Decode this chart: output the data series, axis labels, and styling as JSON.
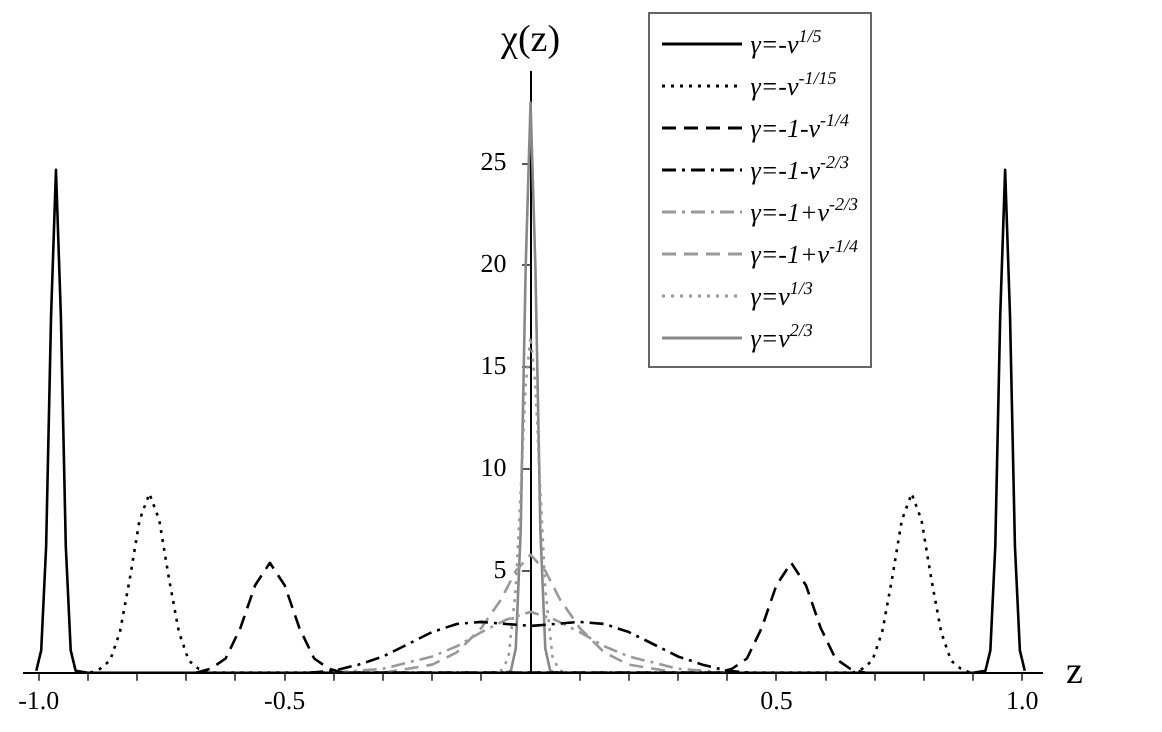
{
  "chart_data": {
    "type": "line",
    "xlabel": "z",
    "ylabel": "χ(z)",
    "xlim": [
      -1.03,
      1.04
    ],
    "ylim": [
      0,
      29.5
    ],
    "xticks": [
      {
        "value": -1,
        "label": "-1.0"
      },
      {
        "value": -0.9,
        "label": null
      },
      {
        "value": -0.8,
        "label": null
      },
      {
        "value": -0.7,
        "label": null
      },
      {
        "value": -0.6,
        "label": null
      },
      {
        "value": -0.5,
        "label": "-0.5"
      },
      {
        "value": -0.4,
        "label": null
      },
      {
        "value": -0.3,
        "label": null
      },
      {
        "value": -0.2,
        "label": null
      },
      {
        "value": -0.1,
        "label": null
      },
      {
        "value": 0.1,
        "label": null
      },
      {
        "value": 0.2,
        "label": null
      },
      {
        "value": 0.3,
        "label": null
      },
      {
        "value": 0.4,
        "label": null
      },
      {
        "value": 0.5,
        "label": "0.5"
      },
      {
        "value": 0.6,
        "label": null
      },
      {
        "value": 0.7,
        "label": null
      },
      {
        "value": 0.8,
        "label": null
      },
      {
        "value": 0.9,
        "label": null
      },
      {
        "value": 1,
        "label": "1.0"
      }
    ],
    "yticks": [
      {
        "value": 0,
        "label": null
      },
      5,
      10,
      15,
      20,
      25
    ],
    "grid": false,
    "legend": "top right",
    "marker": "none",
    "series": [
      {
        "name": "γ=-ν$^{1/5}$",
        "color": "#000000",
        "line_style": "solid",
        "x": [
          -1.005,
          -0.995,
          -0.985,
          -0.975,
          -0.965,
          -0.955,
          -0.945,
          -0.935,
          -0.925,
          -0.9,
          0.9,
          0.925,
          0.935,
          0.945,
          0.955,
          0.965,
          0.975,
          0.985,
          0.995,
          1.005
        ],
        "values": [
          0.1,
          1.1,
          6.2,
          17.5,
          24.7,
          17.5,
          6.2,
          1.1,
          0.1,
          0,
          0,
          0.1,
          1.1,
          6.2,
          17.5,
          24.7,
          17.5,
          6.2,
          1.1,
          0.1
        ]
      },
      {
        "name": "γ=-ν$^{-1/15}$",
        "color": "#000000",
        "line_style": "dotted",
        "x": [
          -0.895,
          -0.875,
          -0.855,
          -0.835,
          -0.815,
          -0.795,
          -0.775,
          -0.755,
          -0.735,
          -0.715,
          -0.695,
          -0.675,
          -0.655,
          0.655,
          0.675,
          0.695,
          0.715,
          0.735,
          0.755,
          0.775,
          0.795,
          0.815,
          0.835,
          0.855,
          0.875,
          0.895
        ],
        "values": [
          0,
          0.2,
          0.6,
          2.0,
          4.6,
          7.5,
          8.8,
          7.5,
          4.6,
          2.0,
          0.6,
          0.2,
          0,
          0,
          0.2,
          0.6,
          2.0,
          4.6,
          7.5,
          8.8,
          7.5,
          4.6,
          2.0,
          0.6,
          0.2,
          0
        ]
      },
      {
        "name": "γ=-1-ν$^{-1/4}$",
        "color": "#000000",
        "line_style": "dashed",
        "x": [
          -0.68,
          -0.65,
          -0.62,
          -0.59,
          -0.56,
          -0.53,
          -0.5,
          -0.47,
          -0.44,
          -0.41,
          -0.38,
          0.38,
          0.41,
          0.44,
          0.47,
          0.5,
          0.53,
          0.56,
          0.59,
          0.62,
          0.65,
          0.68
        ],
        "values": [
          0,
          0.2,
          0.7,
          2.2,
          4.3,
          5.4,
          4.3,
          2.2,
          0.7,
          0.2,
          0,
          0,
          0.2,
          0.7,
          2.2,
          4.3,
          5.4,
          4.3,
          2.2,
          0.7,
          0.2,
          0
        ]
      },
      {
        "name": "γ=-1-ν$^{-2/3}$",
        "color": "#000000",
        "line_style": "dashdot",
        "x": [
          -0.45,
          -0.4,
          -0.35,
          -0.3,
          -0.25,
          -0.2,
          -0.15,
          -0.1,
          -0.05,
          0,
          0.05,
          0.1,
          0.15,
          0.2,
          0.25,
          0.3,
          0.35,
          0.4,
          0.45
        ],
        "values": [
          0,
          0.1,
          0.4,
          0.8,
          1.4,
          2.0,
          2.4,
          2.5,
          2.4,
          2.3,
          2.4,
          2.5,
          2.4,
          2.0,
          1.4,
          0.8,
          0.4,
          0.1,
          0
        ]
      },
      {
        "name": "γ=-1+ν$^{-2/3}$",
        "color": "#999999",
        "line_style": "dashdot",
        "x": [
          -0.4,
          -0.3,
          -0.2,
          -0.15,
          -0.1,
          -0.05,
          0,
          0.05,
          0.1,
          0.15,
          0.2,
          0.3,
          0.4
        ],
        "values": [
          0,
          0.2,
          0.8,
          1.3,
          2.0,
          2.6,
          3.0,
          2.6,
          2.0,
          1.3,
          0.8,
          0.2,
          0
        ]
      },
      {
        "name": "γ=-1+ν$^{-1/4}$",
        "color": "#999999",
        "line_style": "dashed",
        "x": [
          -0.3,
          -0.2,
          -0.15,
          -0.1,
          -0.06,
          -0.03,
          0,
          0.03,
          0.06,
          0.1,
          0.15,
          0.2,
          0.3
        ],
        "values": [
          0,
          0.4,
          1.0,
          2.2,
          3.6,
          5.0,
          5.8,
          5.0,
          3.6,
          2.2,
          1.0,
          0.4,
          0
        ]
      },
      {
        "name": "γ=ν$^{1/3}$",
        "color": "#999999",
        "line_style": "dotted",
        "x": [
          -0.08,
          -0.06,
          -0.045,
          -0.03,
          -0.02,
          -0.01,
          0,
          0.01,
          0.02,
          0.03,
          0.045,
          0.06,
          0.08
        ],
        "values": [
          0,
          0.1,
          0.7,
          4.1,
          8.9,
          14.1,
          16.5,
          14.1,
          8.9,
          4.1,
          0.7,
          0.1,
          0
        ]
      },
      {
        "name": "γ=ν$^{2/3}$",
        "color": "#888888",
        "line_style": "solid",
        "x": [
          -0.05,
          -0.04,
          -0.03,
          -0.02,
          -0.01,
          0,
          0.01,
          0.02,
          0.03,
          0.04,
          0.05
        ],
        "values": [
          0,
          0.1,
          1.2,
          7.0,
          19.8,
          28,
          19.8,
          7.0,
          1.2,
          0.1,
          0
        ]
      }
    ]
  }
}
